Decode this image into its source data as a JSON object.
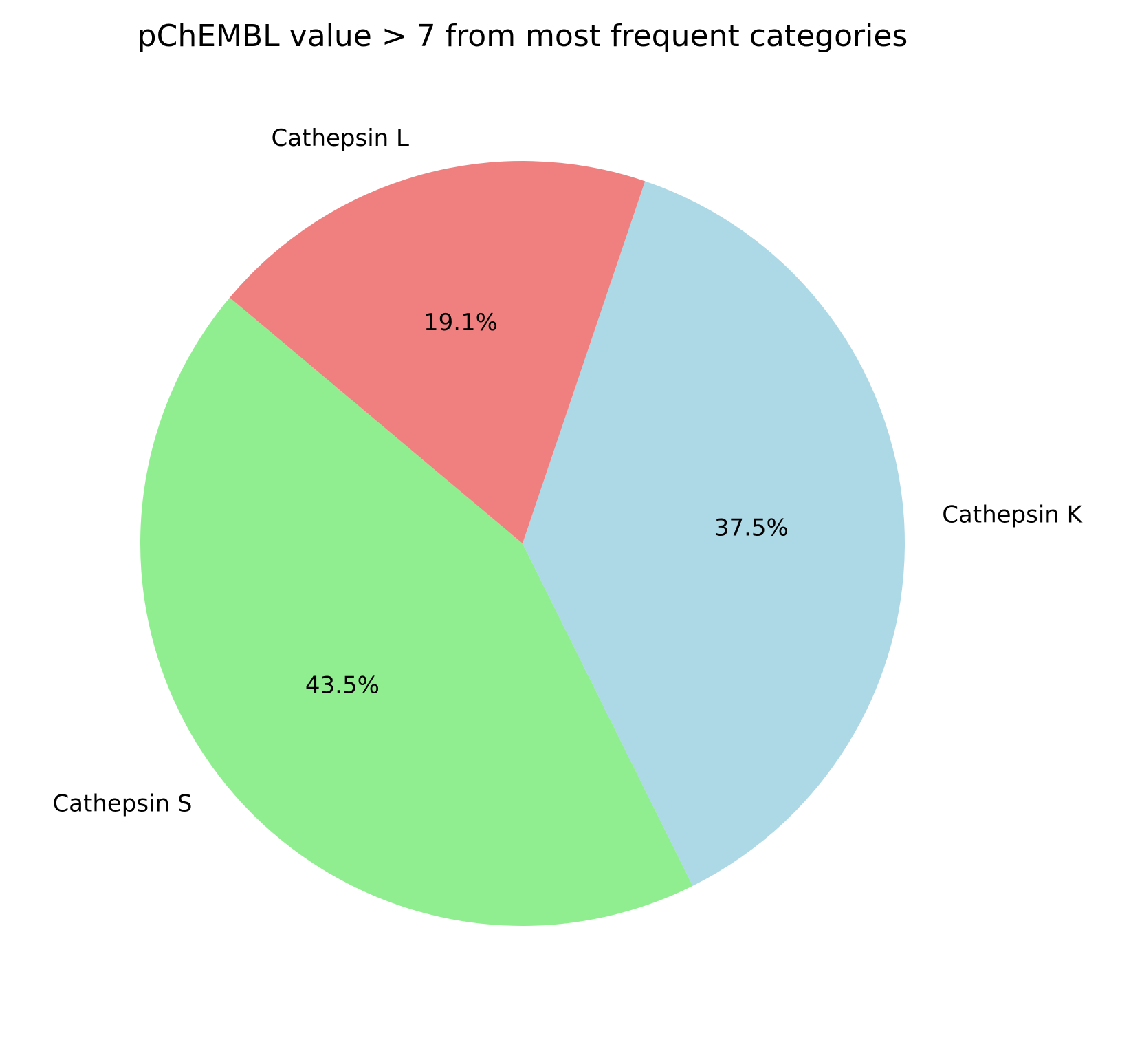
{
  "chart_data": {
    "type": "pie",
    "title": "pChEMBL value > 7 from most frequent categories",
    "start_angle_deg": 140,
    "direction": "counterclockwise",
    "legend": "none",
    "slices": [
      {
        "label": "Cathepsin S",
        "percent": 43.5,
        "percent_label": "43.5%",
        "color": "#90EE90"
      },
      {
        "label": "Cathepsin K",
        "percent": 37.5,
        "percent_label": "37.5%",
        "color": "#ADD8E6"
      },
      {
        "label": "Cathepsin L",
        "percent": 19.1,
        "percent_label": "19.1%",
        "color": "#F08080"
      }
    ]
  }
}
